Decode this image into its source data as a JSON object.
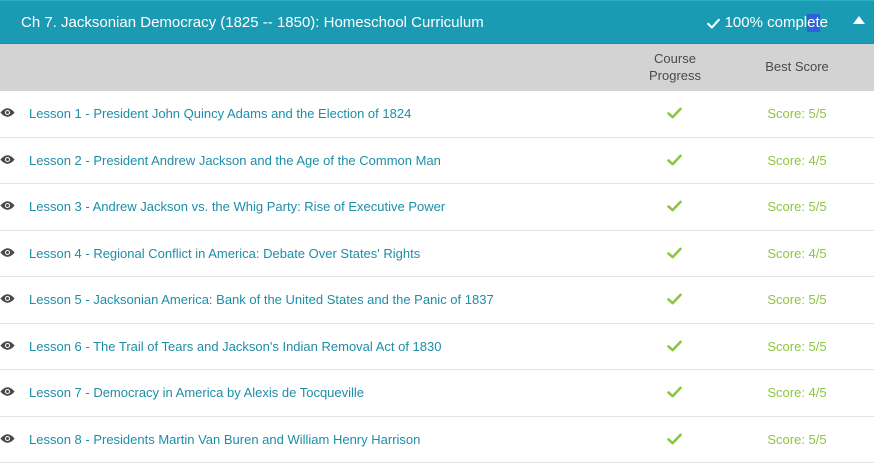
{
  "chapter": {
    "title": "Ch 7. Jacksonian Democracy (1825 -- 1850): Homeschool Curriculum",
    "status_before": "100% compl",
    "status_highlight": "et",
    "status_after": "e"
  },
  "columns": {
    "progress_line1": "Course",
    "progress_line2": "Progress",
    "best": "Best Score"
  },
  "lessons": [
    {
      "title": "Lesson 1 - President John Quincy Adams and the Election of 1824",
      "score": "Score: 5/5"
    },
    {
      "title": "Lesson 2 - President Andrew Jackson and the Age of the Common Man",
      "score": "Score: 4/5"
    },
    {
      "title": "Lesson 3 - Andrew Jackson vs. the Whig Party: Rise of Executive Power",
      "score": "Score: 5/5"
    },
    {
      "title": "Lesson 4 - Regional Conflict in America: Debate Over States' Rights",
      "score": "Score: 4/5"
    },
    {
      "title": "Lesson 5 - Jacksonian America: Bank of the United States and the Panic of 1837",
      "score": "Score: 5/5"
    },
    {
      "title": "Lesson 6 - The Trail of Tears and Jackson's Indian Removal Act of 1830",
      "score": "Score: 5/5"
    },
    {
      "title": "Lesson 7 - Democracy in America by Alexis de Tocqueville",
      "score": "Score: 4/5"
    },
    {
      "title": "Lesson 8 - Presidents Martin Van Buren and William Henry Harrison",
      "score": "Score: 5/5"
    }
  ],
  "icons": {
    "row_view": "eye-icon",
    "row_progress": "checkmark-icon",
    "header_status": "checkmark-icon",
    "collapse": "caret-up-icon"
  },
  "colors": {
    "header_bg": "#1a9bb3",
    "column_header_bg": "#d3d3d3",
    "link": "#1d8ea8",
    "success": "#8cc63f",
    "selection": "#2f5fd9"
  }
}
